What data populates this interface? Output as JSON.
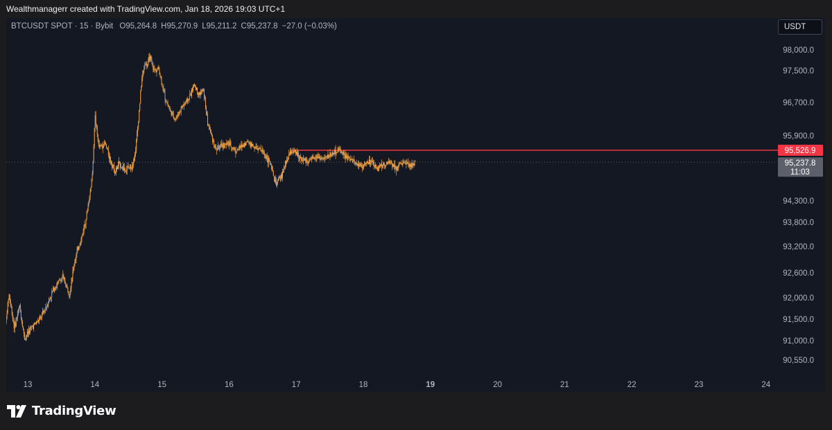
{
  "attribution": "Wealthmanagerr created with TradingView.com, Jan 18, 2026 19:03 UTC+1",
  "header": {
    "symbol": "BTCUSDT SPOT · 15 · Bybit",
    "o_label": "O",
    "o_value": "95,264.8",
    "h_label": "H",
    "h_value": "95,270.9",
    "l_label": "L",
    "l_value": "95,211.2",
    "c_label": "C",
    "c_value": "95,237.8",
    "change": "−27.0 (−0.03%)"
  },
  "currency": "USDT",
  "logo_text": "TradingView",
  "colors": {
    "background": "#1c1c1f",
    "chart_bg": "#141822",
    "candle": "#f7a440",
    "candle_alt": "#9aa0b4",
    "resistance": "#f23645",
    "last_price_bg": "#5d606b",
    "dotted_line": "#5d606b"
  },
  "chart_data": {
    "type": "candlestick",
    "interval": "15",
    "y_ticks": [
      98000,
      97500,
      96700,
      95900,
      94300,
      93800,
      93200,
      92600,
      92000,
      91500,
      91000,
      90550
    ],
    "y_tick_labels": [
      "98,000.0",
      "97,500.0",
      "96,700.0",
      "95,900.0",
      "94,300.0",
      "93,800.0",
      "93,200.0",
      "92,600.0",
      "92,000.0",
      "91,500.0",
      "91,000.0",
      "90,550.0"
    ],
    "x_ticks": [
      13,
      14,
      15,
      16,
      17,
      18,
      19,
      20,
      21,
      22,
      23,
      24
    ],
    "x_tick_labels": [
      "13",
      "14",
      "15",
      "16",
      "17",
      "18",
      "19",
      "20",
      "21",
      "22",
      "23",
      "24"
    ],
    "bold_x_tick": "19",
    "horizontal_line": {
      "value": 95526.9,
      "label": "95,526.9",
      "start_x": 16.93
    },
    "last_price": {
      "value": 95237.8,
      "label": "95,237.8",
      "countdown": "11:03"
    },
    "price_path": [
      [
        12.65,
        91100
      ],
      [
        12.72,
        92100
      ],
      [
        12.8,
        91300
      ],
      [
        12.88,
        91800
      ],
      [
        12.95,
        91050
      ],
      [
        13.05,
        91300
      ],
      [
        13.18,
        91500
      ],
      [
        13.28,
        91800
      ],
      [
        13.38,
        92200
      ],
      [
        13.52,
        92500
      ],
      [
        13.62,
        92100
      ],
      [
        13.7,
        92900
      ],
      [
        13.8,
        93400
      ],
      [
        13.88,
        94000
      ],
      [
        13.93,
        94500
      ],
      [
        13.97,
        95100
      ],
      [
        14.0,
        96400
      ],
      [
        14.06,
        95600
      ],
      [
        14.15,
        95700
      ],
      [
        14.22,
        95350
      ],
      [
        14.3,
        95000
      ],
      [
        14.36,
        95200
      ],
      [
        14.45,
        95050
      ],
      [
        14.55,
        95150
      ],
      [
        14.6,
        95450
      ],
      [
        14.65,
        96300
      ],
      [
        14.7,
        97300
      ],
      [
        14.75,
        97700
      ],
      [
        14.78,
        97600
      ],
      [
        14.82,
        97850
      ],
      [
        14.88,
        97500
      ],
      [
        14.95,
        97550
      ],
      [
        15.05,
        96800
      ],
      [
        15.12,
        96500
      ],
      [
        15.2,
        96300
      ],
      [
        15.3,
        96600
      ],
      [
        15.4,
        96800
      ],
      [
        15.48,
        97150
      ],
      [
        15.55,
        96900
      ],
      [
        15.62,
        97000
      ],
      [
        15.68,
        96200
      ],
      [
        15.73,
        95950
      ],
      [
        15.8,
        95550
      ],
      [
        15.9,
        95650
      ],
      [
        16.0,
        95700
      ],
      [
        16.1,
        95500
      ],
      [
        16.2,
        95650
      ],
      [
        16.28,
        95750
      ],
      [
        16.38,
        95600
      ],
      [
        16.5,
        95500
      ],
      [
        16.6,
        95250
      ],
      [
        16.7,
        94700
      ],
      [
        16.78,
        94900
      ],
      [
        16.85,
        95250
      ],
      [
        16.93,
        95520
      ],
      [
        17.0,
        95450
      ],
      [
        17.1,
        95300
      ],
      [
        17.2,
        95250
      ],
      [
        17.3,
        95400
      ],
      [
        17.4,
        95300
      ],
      [
        17.5,
        95420
      ],
      [
        17.6,
        95500
      ],
      [
        17.65,
        95550
      ],
      [
        17.72,
        95380
      ],
      [
        17.8,
        95300
      ],
      [
        17.9,
        95200
      ],
      [
        18.0,
        95150
      ],
      [
        18.1,
        95250
      ],
      [
        18.2,
        95100
      ],
      [
        18.3,
        95180
      ],
      [
        18.4,
        95230
      ],
      [
        18.5,
        95120
      ],
      [
        18.6,
        95240
      ],
      [
        18.68,
        95140
      ],
      [
        18.78,
        95238
      ]
    ]
  }
}
